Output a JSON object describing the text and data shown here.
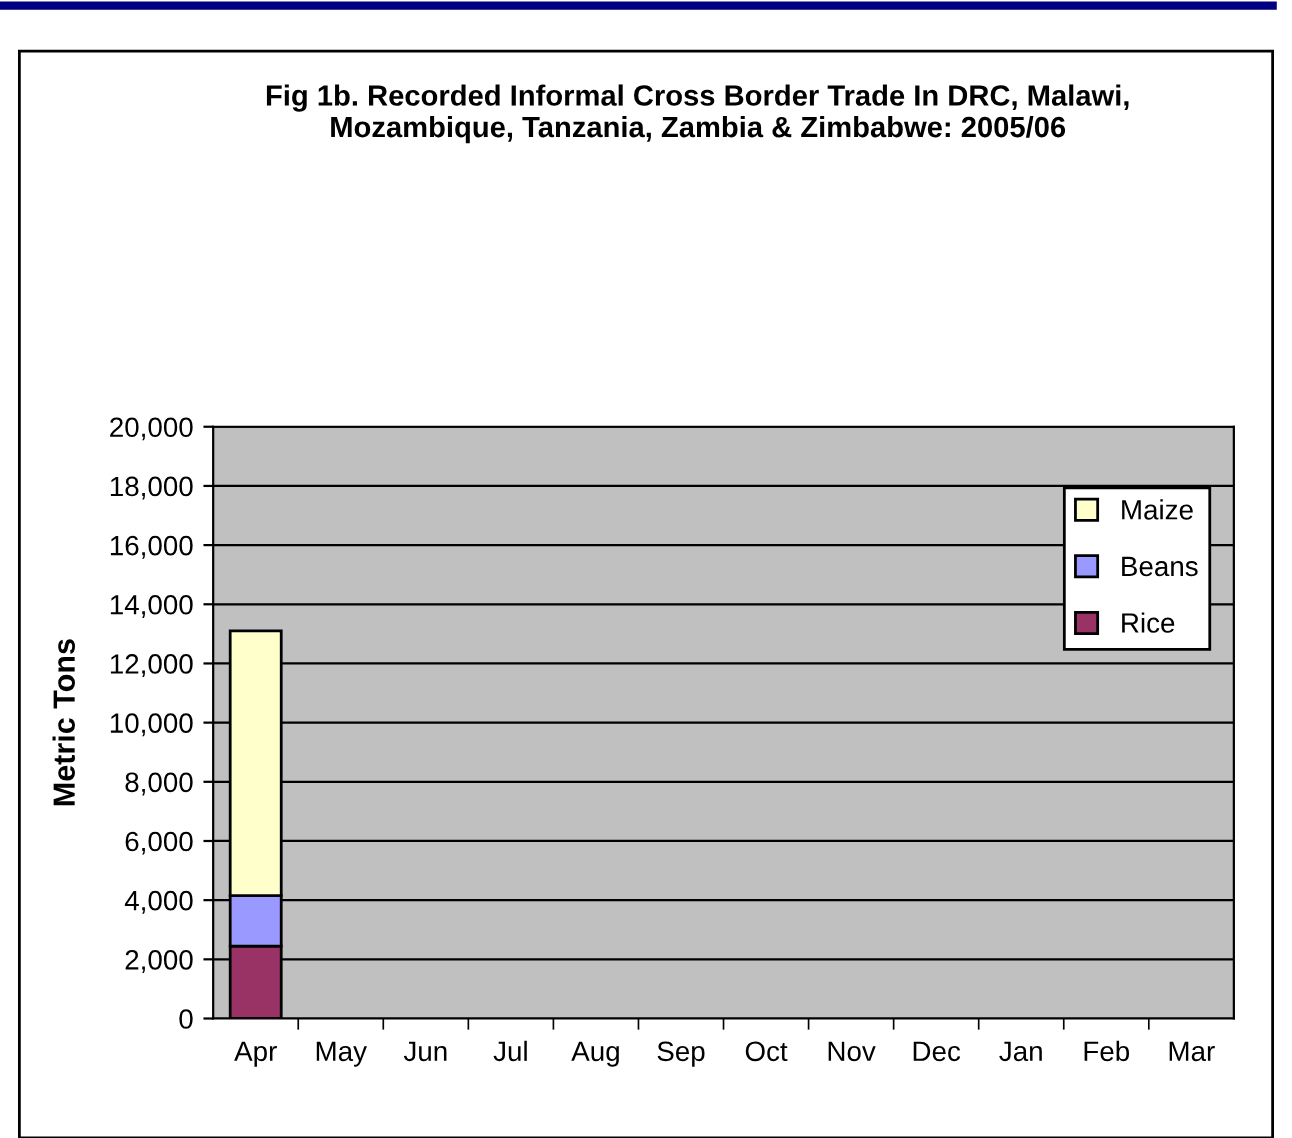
{
  "chart_data": {
    "type": "bar",
    "stacked": true,
    "title": "Fig 1b. Recorded Informal Cross Border Trade In DRC, Malawi,\nMozambique, Tanzania, Zambia & Zimbabwe: 2005/06",
    "ylabel": "Metric Tons",
    "categories": [
      "Apr",
      "May",
      "Jun",
      "Jul",
      "Aug",
      "Sep",
      "Oct",
      "Nov",
      "Dec",
      "Jan",
      "Feb",
      "Mar"
    ],
    "series": [
      {
        "name": "Rice",
        "color": "#993366",
        "values": [
          2450,
          null,
          null,
          null,
          null,
          null,
          null,
          null,
          null,
          null,
          null,
          null
        ]
      },
      {
        "name": "Beans",
        "color": "#9999ff",
        "values": [
          1700,
          null,
          null,
          null,
          null,
          null,
          null,
          null,
          null,
          null,
          null,
          null
        ]
      },
      {
        "name": "Maize",
        "color": "#ffffcc",
        "values": [
          8950,
          null,
          null,
          null,
          null,
          null,
          null,
          null,
          null,
          null,
          null,
          null
        ]
      }
    ],
    "ylim": [
      0,
      20000
    ],
    "yticks": [
      {
        "value": 0,
        "label": "0"
      },
      {
        "value": 2000,
        "label": "2,000"
      },
      {
        "value": 4000,
        "label": "4,000"
      },
      {
        "value": 6000,
        "label": "6,000"
      },
      {
        "value": 8000,
        "label": "8,000"
      },
      {
        "value": 10000,
        "label": "10,000"
      },
      {
        "value": 12000,
        "label": "12,000"
      },
      {
        "value": 14000,
        "label": "14,000"
      },
      {
        "value": 16000,
        "label": "16,000"
      },
      {
        "value": 18000,
        "label": "18,000"
      },
      {
        "value": 20000,
        "label": "20,000"
      }
    ],
    "grid": "y",
    "legend": "top right"
  }
}
